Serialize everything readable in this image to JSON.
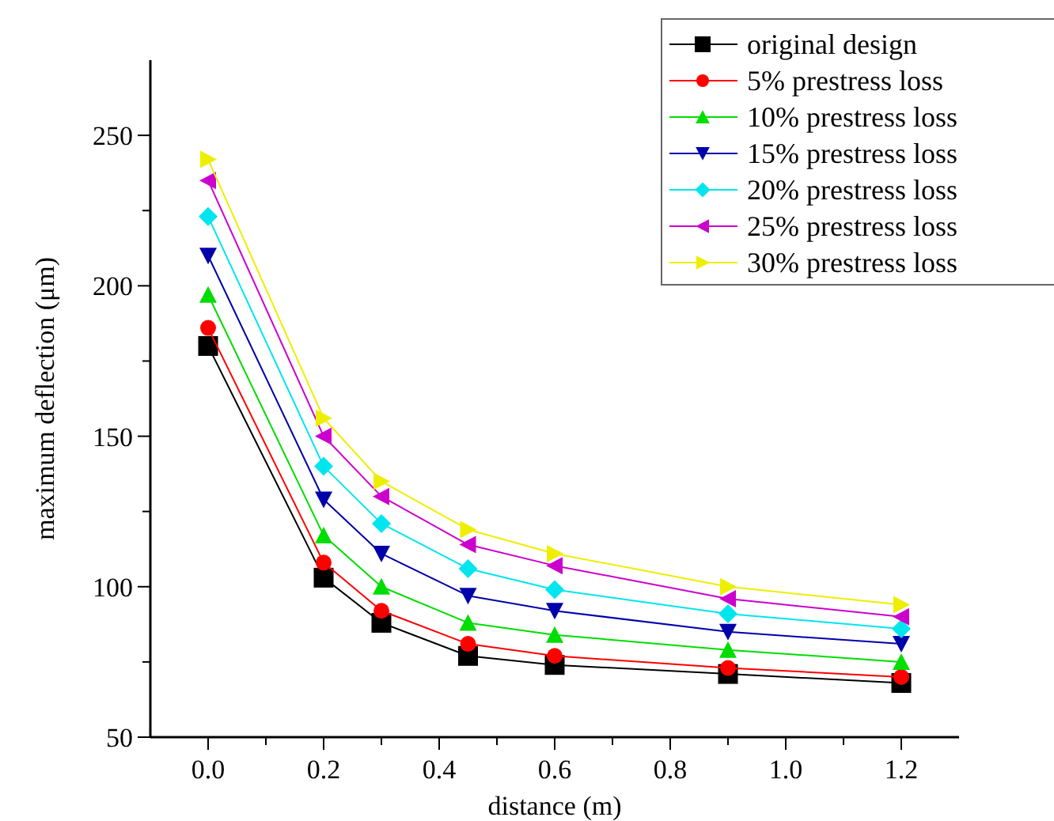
{
  "chart_data": {
    "type": "line",
    "xlabel": "distance (m)",
    "ylabel": "maximum deflection (μm)",
    "x": [
      0,
      0.2,
      0.3,
      0.45,
      0.6,
      0.9,
      1.2
    ],
    "xlim": [
      -0.1,
      1.3
    ],
    "ylim": [
      50,
      275
    ],
    "xticks": [
      {
        "value": 0,
        "label": "0.0"
      },
      {
        "value": 0.1,
        "label": null
      },
      {
        "value": 0.2,
        "label": "0.2"
      },
      {
        "value": 0.3,
        "label": null
      },
      {
        "value": 0.4,
        "label": "0.4"
      },
      {
        "value": 0.5,
        "label": null
      },
      {
        "value": 0.6,
        "label": "0.6"
      },
      {
        "value": 0.7,
        "label": null
      },
      {
        "value": 0.8,
        "label": "0.8"
      },
      {
        "value": 0.9,
        "label": null
      },
      {
        "value": 1.0,
        "label": "1.0"
      },
      {
        "value": 1.1,
        "label": null
      },
      {
        "value": 1.2,
        "label": "1.2"
      }
    ],
    "yticks": [
      50,
      {
        "value": 75,
        "label": null
      },
      100,
      {
        "value": 125,
        "label": null
      },
      150,
      {
        "value": 175,
        "label": null
      },
      200,
      {
        "value": 225,
        "label": null
      },
      250
    ],
    "grid": false,
    "legend": "top right",
    "series": [
      {
        "name": "original design",
        "color": "#000000",
        "marker": "square",
        "values": [
          180,
          103,
          88,
          77,
          74,
          71,
          68
        ]
      },
      {
        "name": "5% prestress loss",
        "color": "#ff0000",
        "marker": "circle",
        "values": [
          186,
          108,
          92,
          81,
          77,
          73,
          70
        ]
      },
      {
        "name": "10% prestress loss",
        "color": "#00dd00",
        "marker": "triangle",
        "values": [
          197,
          117,
          100,
          88,
          84,
          79,
          75
        ]
      },
      {
        "name": "15% prestress loss",
        "color": "#0000aa",
        "marker": "triangle-down",
        "values": [
          210,
          129,
          111,
          97,
          92,
          85,
          81
        ]
      },
      {
        "name": "20% prestress loss",
        "color": "#00e5ee",
        "marker": "diamond",
        "values": [
          223,
          140,
          121,
          106,
          99,
          91,
          86
        ]
      },
      {
        "name": "25% prestress loss",
        "color": "#cc00cc",
        "marker": "triangle-left",
        "values": [
          235,
          150,
          130,
          114,
          107,
          96,
          90
        ]
      },
      {
        "name": "30% prestress loss",
        "color": "#eeee00",
        "marker": "triangle-right",
        "values": [
          242,
          156,
          135,
          119,
          111,
          100,
          94
        ]
      }
    ]
  }
}
